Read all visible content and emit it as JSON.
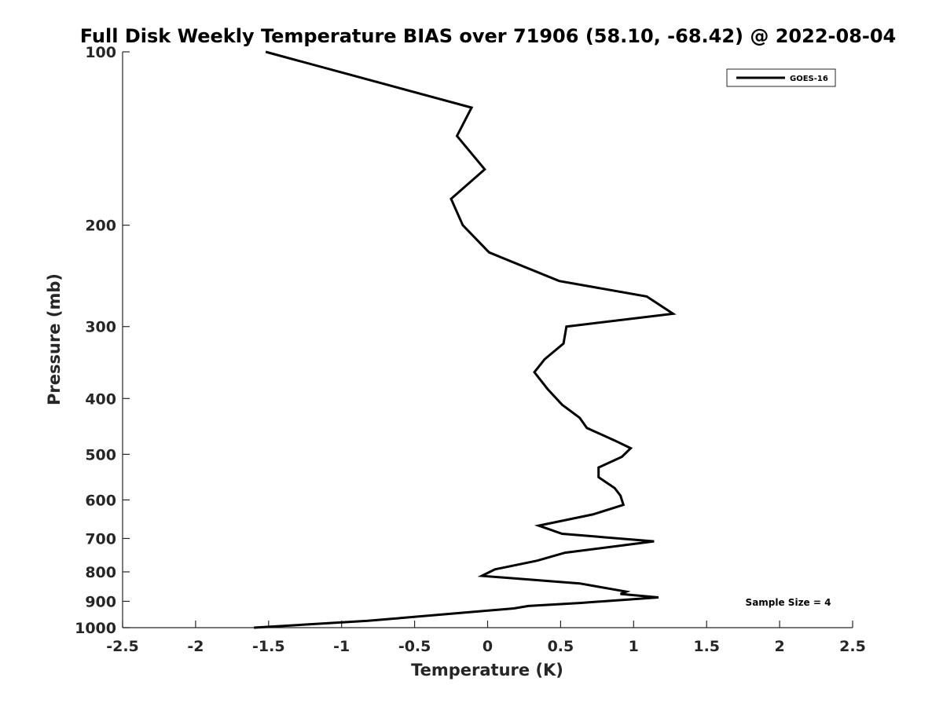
{
  "chart_data": {
    "type": "line",
    "title": "Full Disk Weekly Temperature BIAS over 71906 (58.10, -68.42) @ 2022-08-04",
    "xlabel": "Temperature (K)",
    "ylabel": "Pressure (mb)",
    "xlim": [
      -2.5,
      2.5
    ],
    "ylim": [
      100,
      1000
    ],
    "y_scale": "log",
    "y_reversed": true,
    "x_ticks": [
      "-2.5",
      "-2",
      "-1.5",
      "-1",
      "-0.5",
      "0",
      "0.5",
      "1",
      "1.5",
      "2",
      "2.5"
    ],
    "y_ticks": [
      "100",
      "200",
      "300",
      "400",
      "500",
      "600",
      "700",
      "800",
      "900",
      "1000"
    ],
    "grid": false,
    "legend": {
      "position": "top-right",
      "entries": [
        "GOES-16"
      ]
    },
    "annotation": "Sample Size = 4",
    "series": [
      {
        "name": "GOES-16",
        "color": "#000000",
        "points": [
          [
            -1.52,
            100
          ],
          [
            -0.11,
            125
          ],
          [
            -0.21,
            140
          ],
          [
            -0.02,
            160
          ],
          [
            -0.25,
            180
          ],
          [
            -0.17,
            200
          ],
          [
            0.01,
            223
          ],
          [
            0.49,
            250
          ],
          [
            1.09,
            266
          ],
          [
            1.27,
            285
          ],
          [
            0.54,
            300
          ],
          [
            0.52,
            321
          ],
          [
            0.39,
            342
          ],
          [
            0.32,
            360
          ],
          [
            0.41,
            385
          ],
          [
            0.51,
            410
          ],
          [
            0.63,
            432
          ],
          [
            0.68,
            450
          ],
          [
            0.87,
            473
          ],
          [
            0.98,
            488
          ],
          [
            0.92,
            505
          ],
          [
            0.76,
            527
          ],
          [
            0.76,
            548
          ],
          [
            0.87,
            572
          ],
          [
            0.91,
            590
          ],
          [
            0.93,
            612
          ],
          [
            0.72,
            636
          ],
          [
            0.35,
            665
          ],
          [
            0.51,
            687
          ],
          [
            1.14,
            708
          ],
          [
            0.53,
            741
          ],
          [
            0.34,
            765
          ],
          [
            0.05,
            792
          ],
          [
            -0.04,
            813
          ],
          [
            0.63,
            838
          ],
          [
            0.95,
            866
          ],
          [
            0.91,
            874
          ],
          [
            1.17,
            886
          ],
          [
            0.63,
            906
          ],
          [
            0.28,
            917
          ],
          [
            0.18,
            926
          ],
          [
            -0.25,
            946
          ],
          [
            -0.82,
            973
          ],
          [
            -1.6,
            1000
          ]
        ]
      }
    ]
  }
}
